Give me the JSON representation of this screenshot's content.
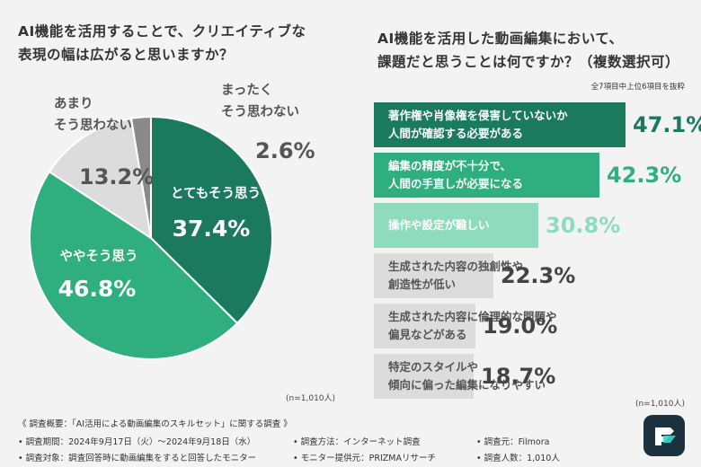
{
  "left": {
    "question_lines": [
      "AI機能を活用することで、クリエイティブな",
      "表現の幅は広がると思いますか？"
    ],
    "n_note": "(n=1,010人)"
  },
  "right": {
    "question_lines": [
      "AI機能を活用した動画編集において、",
      "課題だと思うことは何ですか？（複数選択可）"
    ],
    "selection_note": "全7項目中上位6項目を抜粋",
    "n_note": "(n=1,010人)"
  },
  "footer": {
    "summary": "《 調査概要：「AI活用による動画編集のスキルセット」に関する調査 》",
    "period": "• 調査期間：2024年9月17日（火）〜2024年9月18日（水）",
    "method": "• 調査方法：インターネット調査",
    "source": "• 調査元：Filmora",
    "target": "• 調査対象：調査回答時に動画編集をすると回答したモニター",
    "provider": "• モニター提供元：PRIZMAリサーチ",
    "count": "• 調査人数：1,010人"
  },
  "colors": {
    "dark_green": "#1b7a5e",
    "mid_green": "#2fae7f",
    "light_green": "#8fdbbd",
    "light_gray": "#dcdcdc",
    "dark_gray": "#8a8a8a"
  },
  "logo_icon": "filmora-logo-icon",
  "chart_data": [
    {
      "type": "pie",
      "slices": [
        {
          "label_lines": [
            "とてもそう思う"
          ],
          "value": 37.4,
          "pct_label": "37.4%",
          "color": "#1b7a5e",
          "text_color": "#ffffff"
        },
        {
          "label_lines": [
            "ややそう思う"
          ],
          "value": 46.8,
          "pct_label": "46.8%",
          "color": "#2fae7f",
          "text_color": "#ffffff"
        },
        {
          "label_lines": [
            "あまり",
            "そう思わない"
          ],
          "value": 13.2,
          "pct_label": "13.2%",
          "color": "#dcdcdc",
          "text_color": "#555555"
        },
        {
          "label_lines": [
            "まったく",
            "そう思わない"
          ],
          "value": 2.6,
          "pct_label": "2.6%",
          "color": "#8a8a8a",
          "text_color": "#555555"
        }
      ]
    },
    {
      "type": "bar",
      "orientation": "horizontal",
      "items": [
        {
          "label_lines": [
            "著作権や肖像権を侵害していないか",
            "人間が確認する必要がある"
          ],
          "value": 47.1,
          "pct_label": "47.1%",
          "color": "#1b7a5e",
          "text_color": "#ffffff",
          "pct_color": "#1b7a5e"
        },
        {
          "label_lines": [
            "編集の精度が不十分で、",
            "人間の手直しが必要になる"
          ],
          "value": 42.3,
          "pct_label": "42.3%",
          "color": "#2fae7f",
          "text_color": "#ffffff",
          "pct_color": "#2fae7f"
        },
        {
          "label_lines": [
            "操作や設定が難しい"
          ],
          "value": 30.8,
          "pct_label": "30.8%",
          "color": "#8fdbbd",
          "text_color": "#ffffff",
          "pct_color": "#8fdbbd"
        },
        {
          "label_lines": [
            "生成された内容の独創性や",
            "創造性が低い"
          ],
          "value": 22.3,
          "pct_label": "22.3%",
          "color": "#dcdcdc",
          "text_color": "#555555",
          "pct_color": "#444444"
        },
        {
          "label_lines": [
            "生成された内容に倫理的な問題や",
            "偏見などがある"
          ],
          "value": 19.0,
          "pct_label": "19.0%",
          "color": "#dcdcdc",
          "text_color": "#555555",
          "pct_color": "#444444"
        },
        {
          "label_lines": [
            "特定のスタイルや",
            "傾向に偏った編集になりやすい"
          ],
          "value": 18.7,
          "pct_label": "18.7%",
          "color": "#dcdcdc",
          "text_color": "#555555",
          "pct_color": "#444444"
        }
      ]
    }
  ]
}
